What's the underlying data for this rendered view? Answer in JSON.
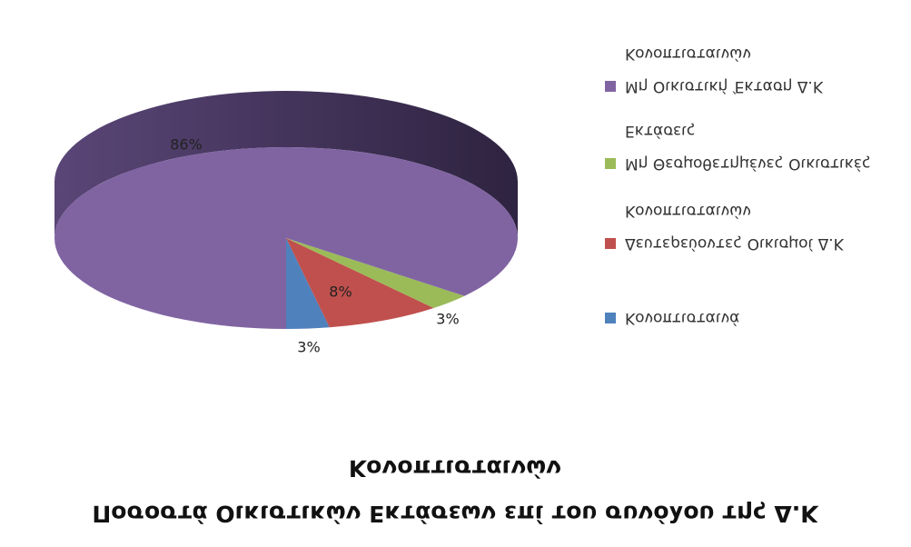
{
  "chart_data": {
    "type": "pie",
    "title": "Ποσοστά Οικιστικών Εκτάσεων επί του συνόλου της Δ.Κ Κονοπτισταινών",
    "categories": [
      "Κονοπτισταινά",
      "Δευτερεύοντες Οικισμοί Δ.Κ Κονοπτισταινών",
      "Μη Θεσμοθετημένες Οικιστικές Εκτάσεις",
      "Μη Οικιστική Έκταση Δ.Κ Κονοπτισταινών"
    ],
    "values": [
      3,
      8,
      3,
      86
    ],
    "value_labels": [
      "3%",
      "8%",
      "3%",
      "86%"
    ],
    "colors": [
      "#4f81bd",
      "#c0504d",
      "#9bbb59",
      "#8064a2"
    ],
    "flipped_vertically": true
  }
}
